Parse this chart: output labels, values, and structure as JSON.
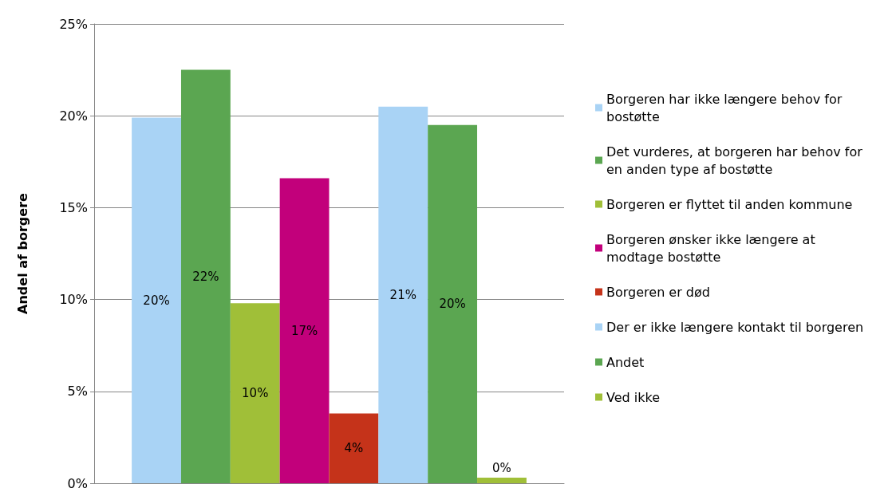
{
  "chart_data": {
    "type": "bar",
    "ylabel": "Andel af borgere",
    "categories": [
      null
    ],
    "series": [
      {
        "name": "Borgeren har ikke længere behov for bostøtte",
        "color": "#a9d3f5",
        "values": [
          19.9
        ],
        "value_labels": [
          "20%"
        ]
      },
      {
        "name": "Det vurderes, at borgeren har behov for en anden type af bostøtte",
        "color": "#5ba651",
        "values": [
          22.5
        ],
        "value_labels": [
          "22%"
        ]
      },
      {
        "name": "Borgeren er flyttet til anden kommune",
        "color": "#a0bf38",
        "values": [
          9.8
        ],
        "value_labels": [
          "10%"
        ]
      },
      {
        "name": "Borgeren ønsker ikke længere at modtage bostøtte",
        "color": "#c2007b",
        "values": [
          16.6
        ],
        "value_labels": [
          "17%"
        ]
      },
      {
        "name": "Borgeren er død",
        "color": "#c5331a",
        "values": [
          3.8
        ],
        "value_labels": [
          "4%"
        ]
      },
      {
        "name": "Der er ikke længere kontakt til borgeren",
        "color": "#a9d3f5",
        "values": [
          20.5
        ],
        "value_labels": [
          "21%"
        ]
      },
      {
        "name": "Andet",
        "color": "#5ba651",
        "values": [
          19.5
        ],
        "value_labels": [
          "20%"
        ]
      },
      {
        "name": "Ved ikke",
        "color": "#a0bf38",
        "values": [
          0.3
        ],
        "value_labels": [
          "0%"
        ]
      }
    ],
    "ylim": [
      0,
      25
    ],
    "yticks": [
      {
        "value": 0,
        "label": "0%"
      },
      {
        "value": 5,
        "label": "5%"
      },
      {
        "value": 10,
        "label": "10%"
      },
      {
        "value": 15,
        "label": "15%"
      },
      {
        "value": 20,
        "label": "20%"
      },
      {
        "value": 25,
        "label": "25%"
      }
    ],
    "grid": "y",
    "legend": "right"
  }
}
